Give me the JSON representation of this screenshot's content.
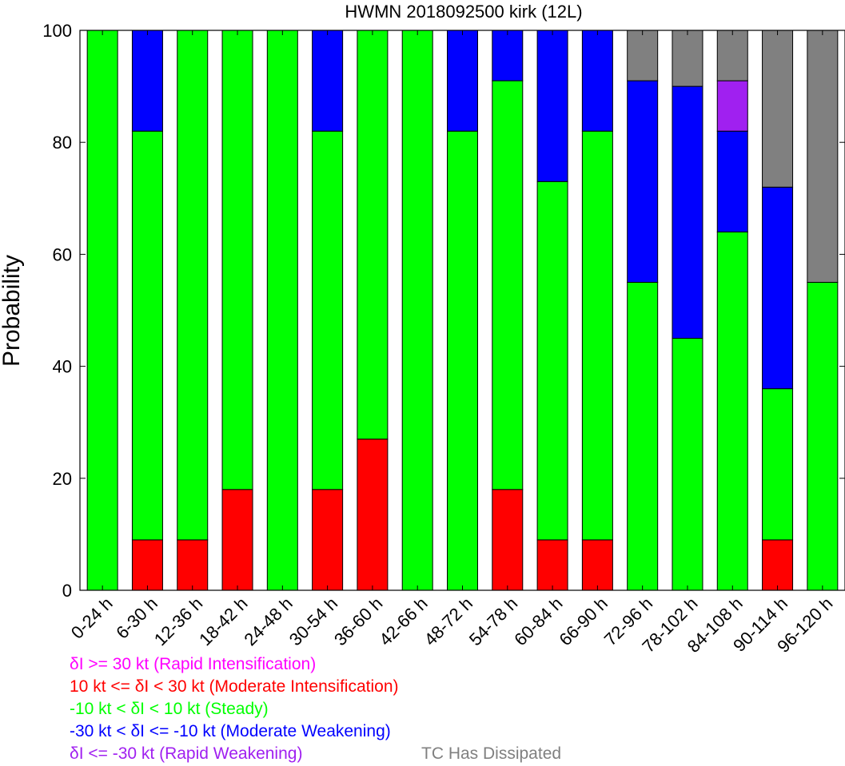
{
  "chart_data": {
    "type": "bar",
    "stacked": true,
    "title": "HWMN 2018092500 kirk (12L)",
    "xlabel": "",
    "ylabel": "Probability",
    "ylim": [
      0,
      100
    ],
    "yticks": [
      0,
      20,
      40,
      60,
      80,
      100
    ],
    "grid": false,
    "categories": [
      "0-24 h",
      "6-30 h",
      "12-36 h",
      "18-42 h",
      "24-48 h",
      "30-54 h",
      "36-60 h",
      "42-66 h",
      "48-72 h",
      "54-78 h",
      "60-84 h",
      "66-90 h",
      "72-96 h",
      "78-102 h",
      "84-108 h",
      "90-114 h",
      "96-120 h"
    ],
    "series": [
      {
        "name": "δI >= 30 kt (Rapid Intensification)",
        "color": "#ff00ff",
        "values": [
          0,
          0,
          0,
          0,
          0,
          0,
          0,
          0,
          0,
          0,
          0,
          0,
          0,
          0,
          0,
          0,
          0
        ]
      },
      {
        "name": "10 kt <= δI < 30 kt (Moderate Intensification)",
        "color": "#ff0000",
        "values": [
          0,
          9,
          9,
          18,
          0,
          18,
          27,
          0,
          0,
          18,
          9,
          9,
          0,
          0,
          0,
          9,
          0
        ]
      },
      {
        "name": "-10 kt < δI < 10 kt (Steady)",
        "color": "#00ff00",
        "values": [
          100,
          73,
          91,
          82,
          100,
          64,
          73,
          100,
          82,
          73,
          64,
          73,
          55,
          45,
          64,
          27,
          55
        ]
      },
      {
        "name": "-30 kt < δI <= -10 kt (Moderate Weakening)",
        "color": "#0000ff",
        "values": [
          0,
          18,
          0,
          0,
          0,
          18,
          0,
          0,
          18,
          9,
          27,
          18,
          36,
          45,
          18,
          36,
          0
        ]
      },
      {
        "name": "δI <= -30 kt (Rapid Weakening)",
        "color": "#a020f0",
        "values": [
          0,
          0,
          0,
          0,
          0,
          0,
          0,
          0,
          0,
          0,
          0,
          0,
          0,
          0,
          9,
          0,
          0
        ]
      },
      {
        "name": "TC Has Dissipated",
        "color": "#808080",
        "values": [
          0,
          0,
          0,
          0,
          0,
          0,
          0,
          0,
          0,
          0,
          0,
          0,
          9,
          10,
          9,
          28,
          45
        ]
      }
    ]
  }
}
